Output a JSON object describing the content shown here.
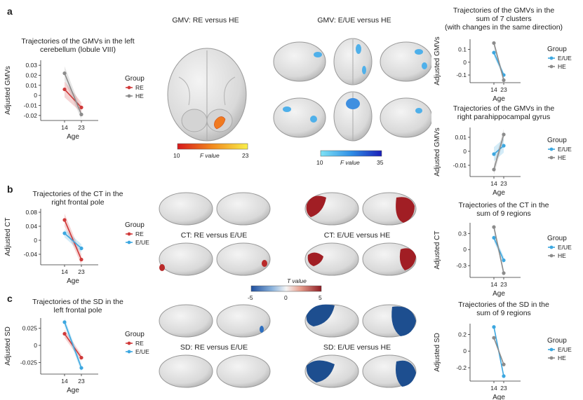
{
  "panel_letters": [
    "a",
    "b",
    "c"
  ],
  "colors": {
    "RE": "#d03a3a",
    "HE": "#8c8c8c",
    "E/UE": "#3ca7e0"
  },
  "map_titles": {
    "gmv_re_he": "GMV: RE versus HE",
    "gmv_eue_he": "GMV: E/UE versus HE",
    "ct_re_eue": "CT: RE versus E/UE",
    "ct_eue_he": "CT: E/UE versus HE",
    "sd_re_eue": "SD: RE versus E/UE",
    "sd_eue_he": "SD: E/UE versus HE"
  },
  "colorbars": {
    "f_red": {
      "min": "10",
      "label": "F value",
      "max": "23"
    },
    "f_blue": {
      "min": "10",
      "label": "F value",
      "max": "35"
    },
    "t_div": {
      "title": "T value",
      "ticks": [
        "-5",
        "0",
        "5"
      ]
    }
  },
  "chart_data": [
    {
      "id": "a_left",
      "type": "line",
      "title": [
        "Trajectories of the GMVs in the left",
        "cerebellum (lobule VIII)"
      ],
      "xlabel": "Age",
      "ylabel": "Adjusted GMVs",
      "x": [
        "14",
        "23"
      ],
      "yticks": [
        "0.03",
        "0.02",
        "0.01",
        "0",
        "-0.01",
        "-0.02"
      ],
      "ylim": [
        -0.025,
        0.035
      ],
      "legend_title": "Group",
      "series": [
        {
          "name": "RE",
          "color": "#d03a3a",
          "values": [
            0.006,
            -0.012
          ],
          "ci": [
            0.008,
            0.005
          ]
        },
        {
          "name": "HE",
          "color": "#8c8c8c",
          "values": [
            0.022,
            -0.019
          ],
          "ci": [
            0.007,
            0.005
          ]
        }
      ]
    },
    {
      "id": "a_r1",
      "type": "line",
      "title": [
        "Trajectories of the GMVs in the",
        "sum of 7 clusters",
        "(with changes in the same direction)"
      ],
      "xlabel": "Age",
      "ylabel": "Adjusted GMVs",
      "x": [
        "14",
        "23"
      ],
      "yticks": [
        "0.1",
        "0",
        "-0.1"
      ],
      "ylim": [
        -0.16,
        0.18
      ],
      "legend_title": "Group",
      "series": [
        {
          "name": "E/UE",
          "color": "#3ca7e0",
          "values": [
            0.075,
            -0.1
          ],
          "ci": [
            0.03,
            0.02
          ]
        },
        {
          "name": "HE",
          "color": "#8c8c8c",
          "values": [
            0.15,
            -0.14
          ],
          "ci": [
            0.025,
            0.02
          ]
        }
      ]
    },
    {
      "id": "a_r2",
      "type": "line",
      "title": [
        "Trajectories of the GMVs in the",
        "right parahippocampal gyrus"
      ],
      "xlabel": "Age",
      "ylabel": "Adjusted GMVs",
      "x": [
        "14",
        "23"
      ],
      "yticks": [
        "0.01",
        "0",
        "-0.01"
      ],
      "ylim": [
        -0.018,
        0.017
      ],
      "legend_title": "Group",
      "series": [
        {
          "name": "E/UE",
          "color": "#3ca7e0",
          "values": [
            -0.002,
            0.004
          ],
          "ci": [
            0.005,
            0.005
          ]
        },
        {
          "name": "HE",
          "color": "#8c8c8c",
          "values": [
            -0.013,
            0.012
          ],
          "ci": [
            0.004,
            0.004
          ]
        }
      ]
    },
    {
      "id": "b_left",
      "type": "line",
      "title": [
        "Trajectories of the CT in the",
        "right frontal pole"
      ],
      "xlabel": "Age",
      "ylabel": "Adjusted CT",
      "x": [
        "14",
        "23"
      ],
      "yticks": [
        "0.08",
        "0.04",
        "0",
        "-0.04"
      ],
      "ylim": [
        -0.07,
        0.09
      ],
      "legend_title": "Group",
      "series": [
        {
          "name": "RE",
          "color": "#d03a3a",
          "values": [
            0.058,
            -0.055
          ],
          "ci": [
            0.018,
            0.015
          ]
        },
        {
          "name": "E/UE",
          "color": "#3ca7e0",
          "values": [
            0.02,
            -0.023
          ],
          "ci": [
            0.012,
            0.012
          ]
        }
      ]
    },
    {
      "id": "b_right",
      "type": "line",
      "title": [
        "Trajectories of the CT in the",
        "sum of 9 regions"
      ],
      "xlabel": "Age",
      "ylabel": "Adjusted CT",
      "x": [
        "14",
        "23"
      ],
      "yticks": [
        "0.3",
        "0",
        "-0.3"
      ],
      "ylim": [
        -0.52,
        0.5
      ],
      "legend_title": "Group",
      "series": [
        {
          "name": "E/UE",
          "color": "#3ca7e0",
          "values": [
            0.22,
            -0.2
          ],
          "ci": [
            0.07,
            0.07
          ]
        },
        {
          "name": "HE",
          "color": "#8c8c8c",
          "values": [
            0.42,
            -0.44
          ],
          "ci": [
            0.06,
            0.06
          ]
        }
      ]
    },
    {
      "id": "c_left",
      "type": "line",
      "title": [
        "Trajectories of the SD in the",
        "left frontal pole"
      ],
      "xlabel": "Age",
      "ylabel": "Adjusted SD",
      "x": [
        "14",
        "23"
      ],
      "yticks": [
        "0.025",
        "0",
        "-0.025"
      ],
      "ylim": [
        -0.042,
        0.04
      ],
      "legend_title": "Group",
      "series": [
        {
          "name": "RE",
          "color": "#d03a3a",
          "values": [
            0.017,
            -0.018
          ],
          "ci": [
            0.006,
            0.005
          ]
        },
        {
          "name": "E/UE",
          "color": "#3ca7e0",
          "values": [
            0.034,
            -0.033
          ],
          "ci": [
            0.006,
            0.006
          ]
        }
      ]
    },
    {
      "id": "c_right",
      "type": "line",
      "title": [
        "Trajectories of the SD in the",
        "sum of 9 regions"
      ],
      "xlabel": "Age",
      "ylabel": "Adjusted SD",
      "x": [
        "14",
        "23"
      ],
      "yticks": [
        "0.2",
        "0",
        "-0.2"
      ],
      "ylim": [
        -0.36,
        0.33
      ],
      "legend_title": "Group",
      "series": [
        {
          "name": "E/UE",
          "color": "#3ca7e0",
          "values": [
            0.29,
            -0.3
          ],
          "ci": [
            0.03,
            0.03
          ]
        },
        {
          "name": "HE",
          "color": "#8c8c8c",
          "values": [
            0.16,
            -0.16
          ],
          "ci": [
            0.02,
            0.02
          ]
        }
      ]
    }
  ]
}
